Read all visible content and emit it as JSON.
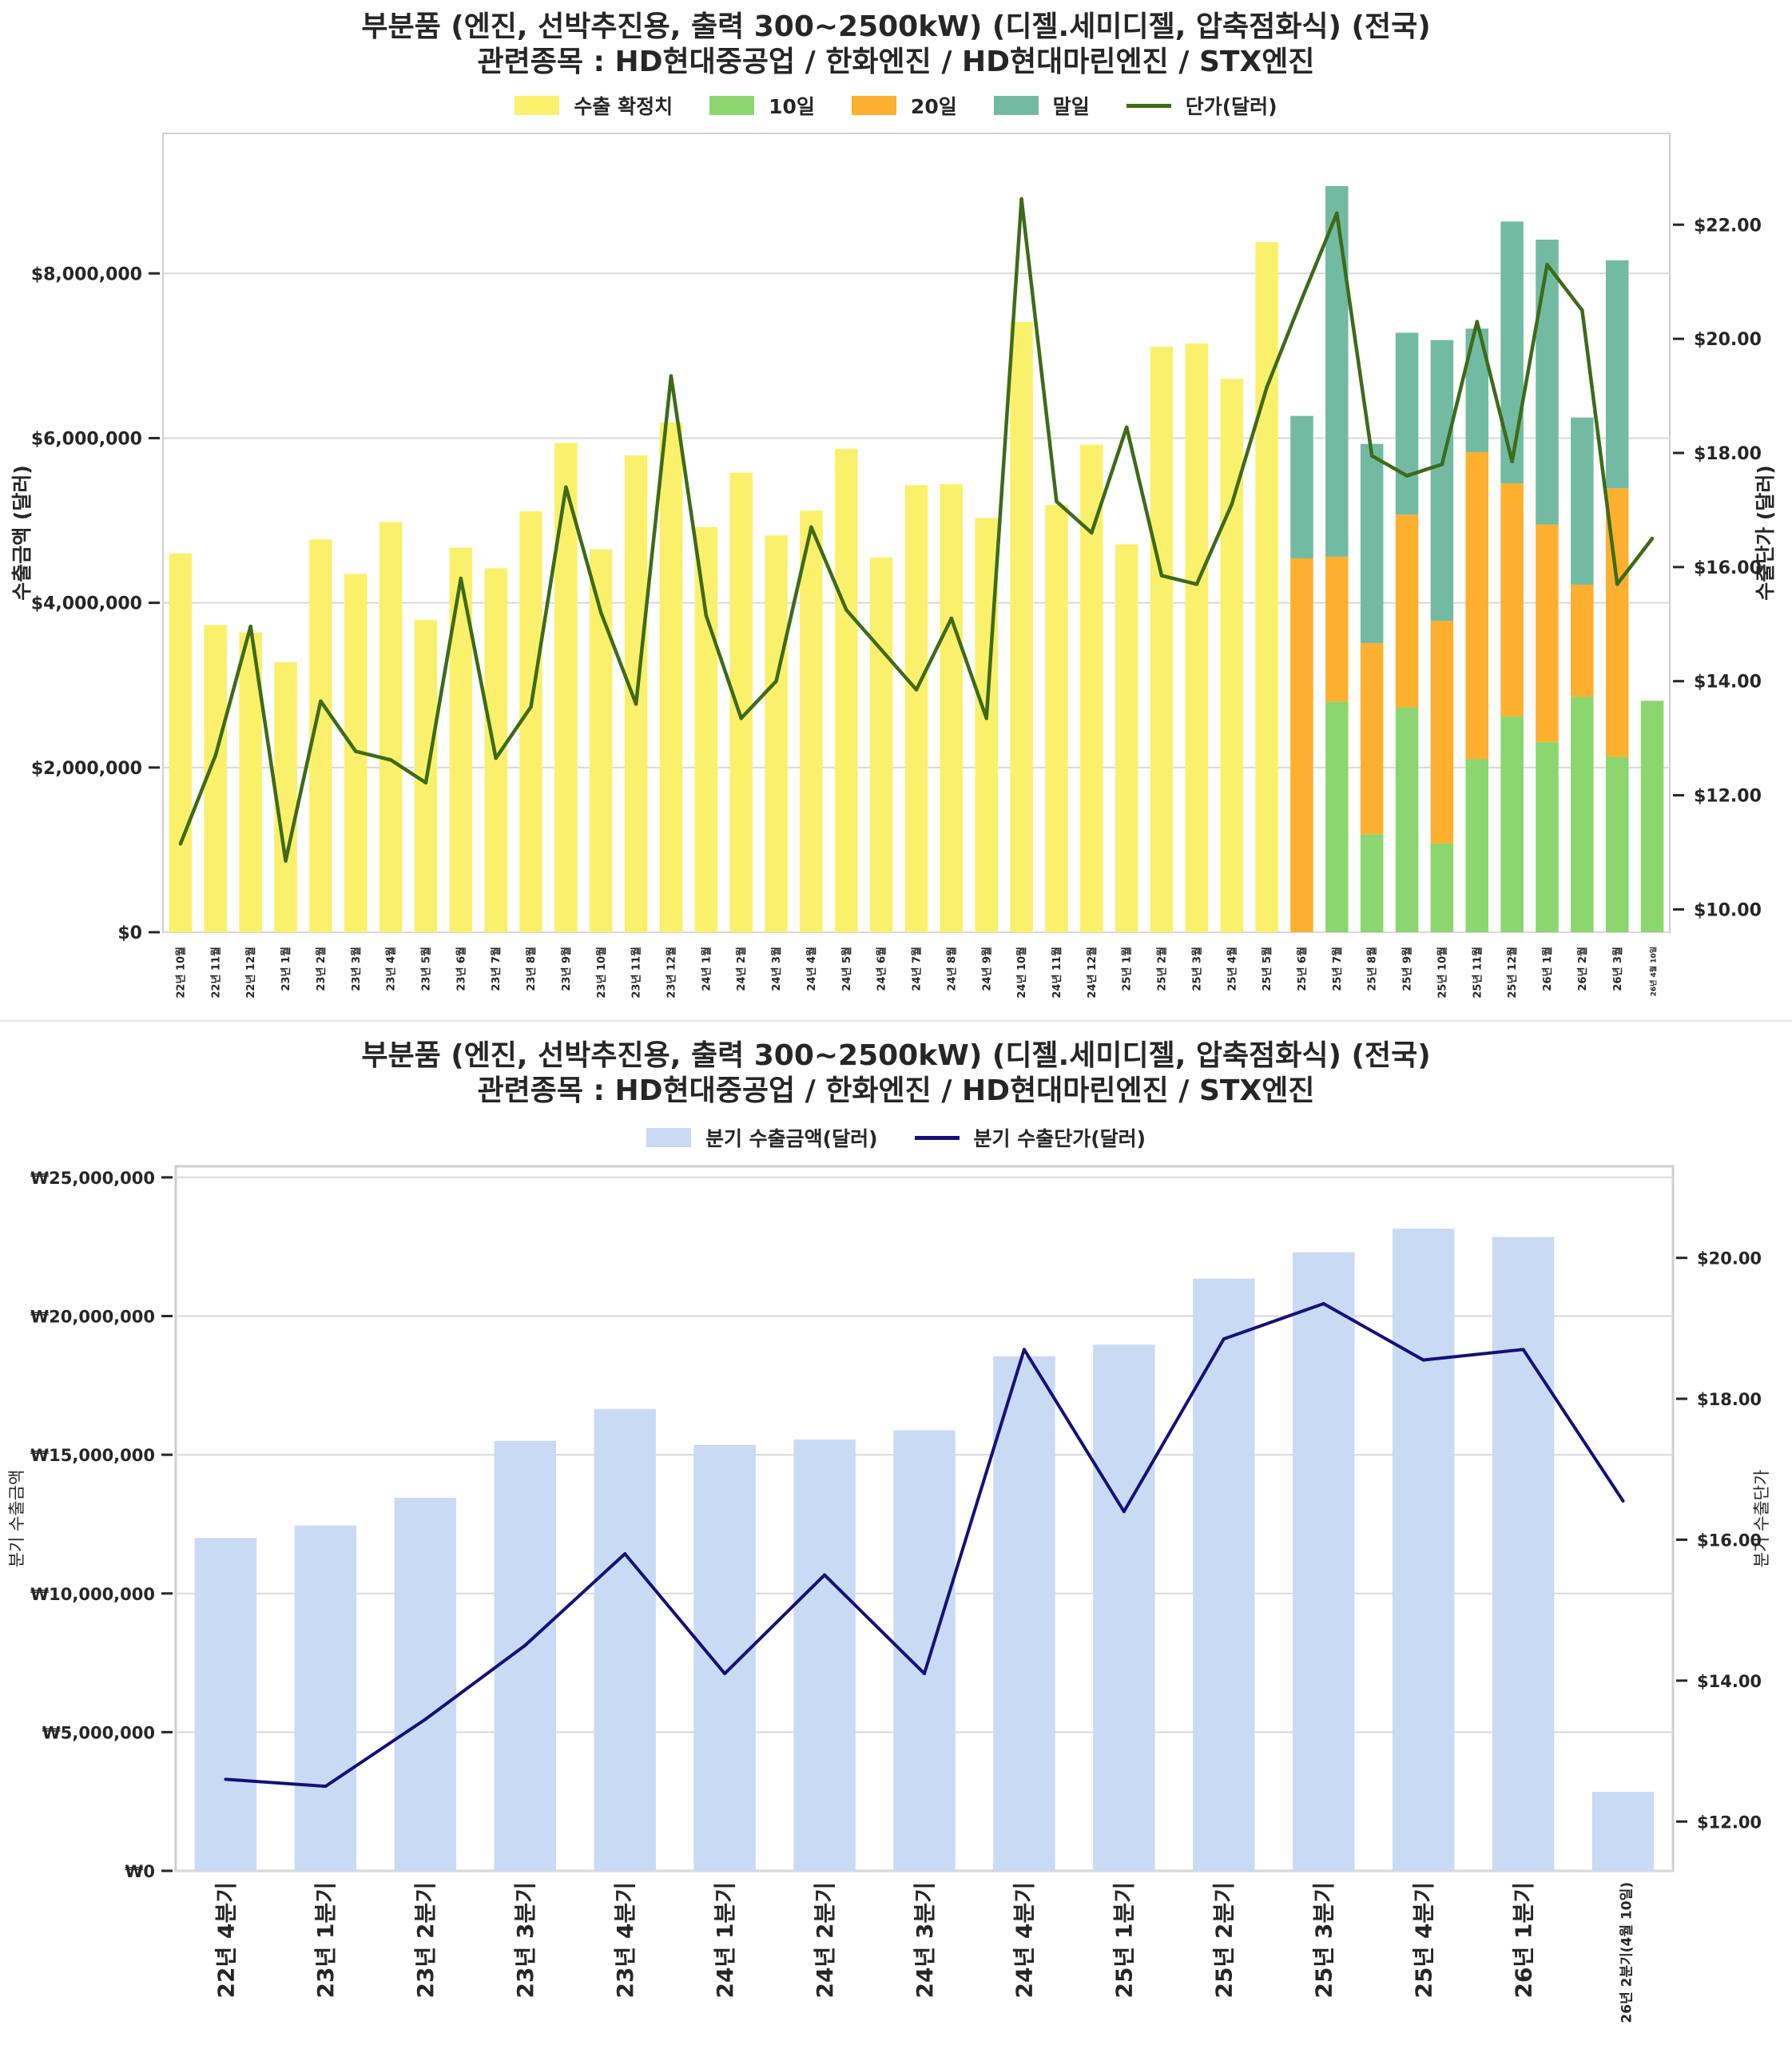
{
  "chart_data": [
    {
      "type": "bar",
      "title_line1": "부분품 (엔진, 선박추진용, 출력 300~2500kW) (디젤.세미디젤, 압축점화식) (전국)",
      "title_line2": "관련종목 : HD현대중공업 / 한화엔진 / HD현대마린엔진 / STX엔진",
      "ylabel": "수출금액 (달러)",
      "ylabel_right": "수출단가 (달러)",
      "ylim": [
        0,
        9700000
      ],
      "ylim_right": [
        9.6,
        23.6
      ],
      "yticks": [
        0,
        2000000,
        4000000,
        6000000,
        8000000
      ],
      "ytick_labels": [
        "$0",
        "$2,000,000",
        "$4,000,000",
        "$6,000,000",
        "$8,000,000"
      ],
      "yticks_right": [
        10,
        12,
        14,
        16,
        18,
        20,
        22
      ],
      "ytick_labels_right": [
        "$10.00",
        "$12.00",
        "$14.00",
        "$16.00",
        "$18.00",
        "$20.00",
        "$22.00"
      ],
      "grid": true,
      "legend_position": "top-center",
      "legend": [
        {
          "label": "수출 확정치",
          "kind": "bar",
          "color": "#fbf06b"
        },
        {
          "label": "10일",
          "kind": "bar",
          "color": "#8bd66e"
        },
        {
          "label": "20일",
          "kind": "bar",
          "color": "#fdb02f"
        },
        {
          "label": "말일",
          "kind": "bar",
          "color": "#72bba2"
        },
        {
          "label": "단가(달러)",
          "kind": "line",
          "color": "#3d6b18"
        }
      ],
      "categories": [
        "22년 10월",
        "22년 11월",
        "22년 12월",
        "23년 1월",
        "23년 2월",
        "23년 3월",
        "23년 4월",
        "23년 5월",
        "23년 6월",
        "23년 7월",
        "23년 8월",
        "23년 9월",
        "23년 10월",
        "23년 11월",
        "23년 12월",
        "24년 1월",
        "24년 2월",
        "24년 3월",
        "24년 4월",
        "24년 5월",
        "24년 6월",
        "24년 7월",
        "24년 8월",
        "24년 9월",
        "24년 10월",
        "24년 11월",
        "24년 12월",
        "25년 1월",
        "25년 2월",
        "25년 3월",
        "25년 4월",
        "25년 5월",
        "25년 6월",
        "25년 7월",
        "25년 8월",
        "25년 9월",
        "25년 10월",
        "25년 11월",
        "25년 12월",
        "26년 1월",
        "26년 2월",
        "26년 3월",
        "26년 4월 10일"
      ],
      "series": [
        {
          "name": "수출 확정치",
          "values": [
            4600000,
            3730000,
            3640000,
            3280000,
            4770000,
            4350000,
            4980000,
            3790000,
            4670000,
            4420000,
            5110000,
            5940000,
            4650000,
            5790000,
            6190000,
            4920000,
            5580000,
            4820000,
            5120000,
            5870000,
            4550000,
            5430000,
            5440000,
            5030000,
            7410000,
            5190000,
            5920000,
            4710000,
            7110000,
            7150000,
            6720000,
            8380000,
            0,
            0,
            0,
            0,
            0,
            0,
            0,
            0,
            0,
            0,
            0
          ]
        },
        {
          "name": "10일",
          "values": [
            0,
            0,
            0,
            0,
            0,
            0,
            0,
            0,
            0,
            0,
            0,
            0,
            0,
            0,
            0,
            0,
            0,
            0,
            0,
            0,
            0,
            0,
            0,
            0,
            0,
            0,
            0,
            0,
            0,
            0,
            0,
            0,
            0,
            2800000,
            1190000,
            2730000,
            1080000,
            2100000,
            2620000,
            2310000,
            2860000,
            2130000,
            2810000
          ]
        },
        {
          "name": "20일",
          "values": [
            0,
            0,
            0,
            0,
            0,
            0,
            0,
            0,
            0,
            0,
            0,
            0,
            0,
            0,
            0,
            0,
            0,
            0,
            0,
            0,
            0,
            0,
            0,
            0,
            0,
            0,
            0,
            0,
            0,
            0,
            0,
            0,
            4540000,
            1760000,
            2320000,
            2340000,
            2700000,
            3730000,
            2830000,
            2640000,
            1360000,
            3260000,
            0
          ]
        },
        {
          "name": "말일",
          "values": [
            0,
            0,
            0,
            0,
            0,
            0,
            0,
            0,
            0,
            0,
            0,
            0,
            0,
            0,
            0,
            0,
            0,
            0,
            0,
            0,
            0,
            0,
            0,
            0,
            0,
            0,
            0,
            0,
            0,
            0,
            0,
            0,
            1730000,
            4500000,
            2420000,
            2210000,
            3410000,
            1500000,
            3180000,
            3460000,
            2030000,
            2770000,
            0
          ]
        },
        {
          "name": "단가(달러)",
          "axis": "right",
          "values": [
            11.15,
            12.7,
            14.96,
            10.85,
            13.65,
            12.77,
            12.62,
            12.22,
            15.8,
            12.65,
            13.55,
            17.4,
            15.2,
            13.6,
            19.35,
            15.15,
            13.35,
            14.0,
            16.7,
            15.25,
            14.55,
            13.85,
            15.1,
            13.35,
            22.45,
            17.15,
            16.6,
            18.45,
            15.85,
            15.7,
            17.1,
            19.15,
            20.7,
            22.2,
            17.95,
            17.6,
            17.8,
            20.3,
            17.85,
            21.3,
            20.5,
            15.7,
            16.5
          ]
        }
      ]
    },
    {
      "type": "bar",
      "title_line1": "부분품 (엔진, 선박추진용, 출력 300~2500kW) (디젤.세미디젤, 압축점화식) (전국)",
      "title_line2": "관련종목 : HD현대중공업 / 한화엔진 / HD현대마린엔진 / STX엔진",
      "ylabel": "분기 수출금액",
      "ylabel_right": "분기 수출단가",
      "ylim": [
        0,
        25400000
      ],
      "ylim_right": [
        11.3,
        21.3
      ],
      "yticks": [
        0,
        5000000,
        10000000,
        15000000,
        20000000,
        25000000
      ],
      "ytick_labels": [
        "₩0",
        "₩5,000,000",
        "₩10,000,000",
        "₩15,000,000",
        "₩20,000,000",
        "₩25,000,000"
      ],
      "yticks_right": [
        12,
        14,
        16,
        18,
        20
      ],
      "ytick_labels_right": [
        "$12.00",
        "$14.00",
        "$16.00",
        "$18.00",
        "$20.00"
      ],
      "grid": true,
      "legend_position": "top-center",
      "legend": [
        {
          "label": "분기 수출금액(달러)",
          "kind": "bar",
          "color": "#c9daf5"
        },
        {
          "label": "분기 수출단가(달러)",
          "kind": "line",
          "color": "#150f78"
        }
      ],
      "categories": [
        "22년 4분기",
        "23년 1분기",
        "23년 2분기",
        "23년 3분기",
        "23년 4분기",
        "24년 1분기",
        "24년 2분기",
        "24년 3분기",
        "24년 4분기",
        "25년 1분기",
        "25년 2분기",
        "25년 3분기",
        "25년 4분기",
        "26년 1분기",
        "26년 2분기(4월 10일)"
      ],
      "series": [
        {
          "name": "분기 수출금액(달러)",
          "values": [
            12000000,
            12450000,
            13450000,
            15500000,
            16650000,
            15350000,
            15550000,
            15880000,
            18550000,
            18970000,
            21350000,
            22300000,
            23150000,
            22850000,
            2850000
          ]
        },
        {
          "name": "분기 수출단가(달러)",
          "axis": "right",
          "values": [
            12.6,
            12.5,
            13.45,
            14.5,
            15.8,
            14.1,
            15.5,
            14.1,
            18.7,
            16.4,
            18.85,
            19.35,
            18.55,
            18.7,
            16.55
          ]
        }
      ]
    }
  ]
}
